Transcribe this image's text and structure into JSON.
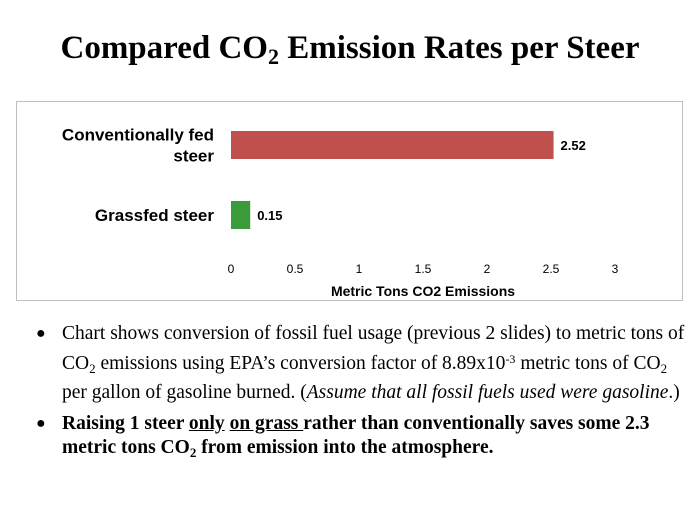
{
  "slide": {
    "title_pre": "Compared CO",
    "title_sub": "2",
    "title_post": " Emission Rates per Steer"
  },
  "chart_data": {
    "type": "bar",
    "orientation": "horizontal",
    "categories": [
      "Conventionally fed steer",
      "Grassfed steer"
    ],
    "values": [
      2.52,
      0.15
    ],
    "value_labels": [
      "2.52",
      "0.15"
    ],
    "bar_colors": [
      "#c0504d",
      "#3a9b3a"
    ],
    "xlabel": "Metric Tons CO2 Emissions",
    "ylabel": "",
    "title": "",
    "xlim": [
      0,
      3
    ],
    "xticks": [
      "0",
      "0.5",
      "1",
      "1.5",
      "2",
      "2.5",
      "3"
    ],
    "grid": false,
    "legend": "none"
  },
  "bullets": {
    "b1": {
      "p1": "Chart shows conversion of fossil fuel usage (previous 2 slides) to metric tons of CO",
      "s1": "2",
      "p2": " emissions using EPA’s conversion factor of 8.89x10",
      "sup": "-3",
      "p3": " metric tons of CO",
      "s2": "2",
      "p4": " per gallon of gasoline burned. (",
      "italic": "Assume that all fossil fuels used were gasoline",
      "p5": ".)"
    },
    "b2": {
      "p1": "Raising 1 steer ",
      "u1": "only",
      "p2": " ",
      "u2": "on grass ",
      "p3": "rather than conventionally saves some 2.3 metric tons CO",
      "s1": "2",
      "p4": " from emission into the atmosphere."
    }
  }
}
